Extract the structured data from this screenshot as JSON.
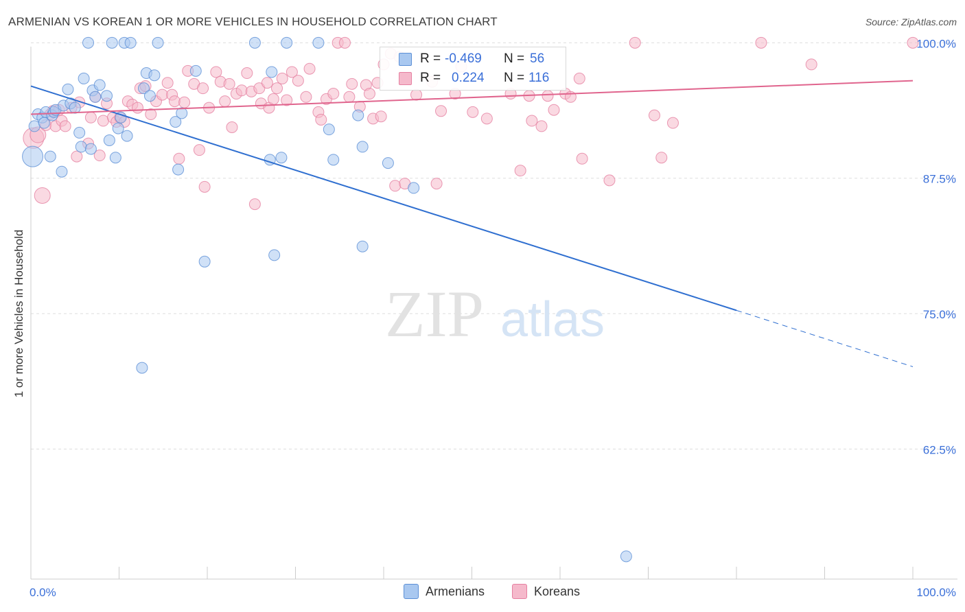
{
  "title": "ARMENIAN VS KOREAN 1 OR MORE VEHICLES IN HOUSEHOLD CORRELATION CHART",
  "source": "Source: ZipAtlas.com",
  "watermark": {
    "zip": "ZIP",
    "atlas": "atlas"
  },
  "stats": {
    "armenians": {
      "r_label": "R =",
      "r_value": "-0.469",
      "n_label": "N =",
      "n_value": "56"
    },
    "koreans": {
      "r_label": "R =",
      "r_value": "0.224",
      "n_label": "N =",
      "n_value": "116"
    }
  },
  "legend": {
    "armenians": "Armenians",
    "koreans": "Koreans"
  },
  "colors": {
    "armenians_fill": "#a9c8f0",
    "armenians_stroke": "#5b8fd6",
    "armenians_line": "#2f6fd0",
    "koreans_fill": "#f5b9cb",
    "koreans_stroke": "#e57fa0",
    "koreans_line": "#e0648d",
    "tick_label": "#3a6fd8",
    "grid": "#dddddd"
  },
  "chart_data": {
    "type": "scatter",
    "title": "ARMENIAN VS KOREAN 1 OR MORE VEHICLES IN HOUSEHOLD CORRELATION CHART",
    "xlabel": "",
    "ylabel": "1 or more Vehicles in Household",
    "xlim": [
      0,
      100
    ],
    "ylim": [
      50.5,
      100.4
    ],
    "x_tick_labels": [
      "0.0%",
      "100.0%"
    ],
    "y_ticks": [
      62.5,
      75.0,
      87.5,
      100.0
    ],
    "y_tick_labels": [
      "62.5%",
      "75.0%",
      "87.5%",
      "100.0%"
    ],
    "grid": true,
    "legend_position": "bottom-center",
    "series": [
      {
        "name": "Armenians",
        "r": -0.469,
        "n": 56,
        "trend": {
          "x": [
            0,
            80
          ],
          "y": [
            96.0,
            75.3
          ],
          "dashed_to": [
            100,
            70.1
          ]
        },
        "points": [
          [
            0.2,
            89.5,
            3
          ],
          [
            0.4,
            92.3,
            1
          ],
          [
            0.8,
            93.4,
            1
          ],
          [
            1.3,
            93.1,
            1
          ],
          [
            1.5,
            92.6,
            1
          ],
          [
            1.7,
            93.6,
            1
          ],
          [
            2.2,
            89.5,
            1
          ],
          [
            2.4,
            93.3,
            1
          ],
          [
            2.6,
            93.6,
            1
          ],
          [
            2.8,
            93.8,
            1
          ],
          [
            3.5,
            88.1,
            1
          ],
          [
            3.7,
            94.2,
            1
          ],
          [
            4.2,
            95.7,
            1
          ],
          [
            4.5,
            94.4,
            1
          ],
          [
            5.0,
            94.0,
            1
          ],
          [
            5.5,
            91.7,
            1
          ],
          [
            5.7,
            90.4,
            1
          ],
          [
            6.0,
            96.7,
            1
          ],
          [
            6.5,
            100.0,
            1
          ],
          [
            6.8,
            90.2,
            1
          ],
          [
            7.0,
            95.6,
            1
          ],
          [
            7.3,
            95.0,
            1
          ],
          [
            7.8,
            96.1,
            1
          ],
          [
            8.6,
            95.1,
            1
          ],
          [
            8.9,
            91.0,
            1
          ],
          [
            9.2,
            100.0,
            1
          ],
          [
            9.6,
            89.4,
            1
          ],
          [
            9.9,
            92.1,
            1
          ],
          [
            10.2,
            93.1,
            1
          ],
          [
            10.6,
            100.0,
            1
          ],
          [
            10.9,
            91.4,
            1
          ],
          [
            11.3,
            100.0,
            1
          ],
          [
            12.6,
            70.0,
            1
          ],
          [
            12.8,
            95.8,
            1
          ],
          [
            13.1,
            97.2,
            1
          ],
          [
            13.5,
            95.1,
            1
          ],
          [
            14.0,
            97.0,
            1
          ],
          [
            14.4,
            100.0,
            1
          ],
          [
            16.4,
            92.7,
            1
          ],
          [
            16.7,
            88.3,
            1
          ],
          [
            17.1,
            93.5,
            1
          ],
          [
            18.7,
            97.4,
            1
          ],
          [
            19.7,
            79.8,
            1
          ],
          [
            25.4,
            100.0,
            1
          ],
          [
            27.1,
            89.2,
            1
          ],
          [
            27.3,
            97.3,
            1
          ],
          [
            27.6,
            80.4,
            1
          ],
          [
            28.4,
            89.4,
            1
          ],
          [
            29.0,
            100.0,
            1
          ],
          [
            32.6,
            100.0,
            1
          ],
          [
            33.8,
            92.0,
            1
          ],
          [
            34.3,
            89.2,
            1
          ],
          [
            37.1,
            93.3,
            1
          ],
          [
            37.6,
            90.4,
            1
          ],
          [
            37.6,
            81.2,
            1
          ],
          [
            40.5,
            88.9,
            1
          ],
          [
            43.4,
            86.6,
            1
          ],
          [
            67.5,
            52.6,
            1
          ]
        ]
      },
      {
        "name": "Koreans",
        "r": 0.224,
        "n": 116,
        "trend": {
          "x": [
            0,
            100
          ],
          "y": [
            93.4,
            96.5
          ]
        },
        "points": [
          [
            0.3,
            91.2,
            3
          ],
          [
            0.8,
            91.5,
            2
          ],
          [
            1.3,
            85.9,
            2
          ],
          [
            1.7,
            92.4,
            1
          ],
          [
            2.2,
            93.4,
            1
          ],
          [
            2.5,
            93.7,
            1
          ],
          [
            2.8,
            92.3,
            1
          ],
          [
            3.2,
            93.8,
            1
          ],
          [
            3.5,
            92.8,
            1
          ],
          [
            3.9,
            92.3,
            1
          ],
          [
            4.6,
            94.0,
            1
          ],
          [
            5.2,
            89.5,
            1
          ],
          [
            5.5,
            94.5,
            1
          ],
          [
            6.5,
            90.7,
            1
          ],
          [
            6.8,
            93.1,
            1
          ],
          [
            7.3,
            95.0,
            1
          ],
          [
            7.8,
            89.6,
            1
          ],
          [
            8.2,
            92.8,
            1
          ],
          [
            8.6,
            94.4,
            1
          ],
          [
            9.3,
            93.1,
            1
          ],
          [
            9.7,
            92.7,
            1
          ],
          [
            10.1,
            93.1,
            1
          ],
          [
            10.6,
            92.7,
            1
          ],
          [
            11.0,
            94.6,
            1
          ],
          [
            11.5,
            94.3,
            1
          ],
          [
            12.1,
            94.0,
            1
          ],
          [
            12.4,
            95.8,
            1
          ],
          [
            13.0,
            96.0,
            1
          ],
          [
            13.6,
            93.4,
            1
          ],
          [
            14.2,
            94.6,
            1
          ],
          [
            14.9,
            95.2,
            1
          ],
          [
            15.5,
            96.3,
            1
          ],
          [
            16.0,
            95.2,
            1
          ],
          [
            16.3,
            94.6,
            1
          ],
          [
            16.8,
            89.3,
            1
          ],
          [
            17.4,
            94.5,
            1
          ],
          [
            17.8,
            97.4,
            1
          ],
          [
            18.5,
            96.2,
            1
          ],
          [
            19.1,
            90.1,
            1
          ],
          [
            19.5,
            95.8,
            1
          ],
          [
            19.7,
            86.7,
            1
          ],
          [
            20.2,
            94.0,
            1
          ],
          [
            21.0,
            97.3,
            1
          ],
          [
            21.5,
            96.4,
            1
          ],
          [
            22.0,
            94.6,
            1
          ],
          [
            22.5,
            96.2,
            1
          ],
          [
            22.8,
            92.2,
            1
          ],
          [
            23.3,
            95.3,
            1
          ],
          [
            23.9,
            95.6,
            1
          ],
          [
            24.5,
            97.2,
            1
          ],
          [
            25.0,
            95.5,
            1
          ],
          [
            25.4,
            85.1,
            1
          ],
          [
            25.9,
            95.8,
            1
          ],
          [
            26.1,
            94.4,
            1
          ],
          [
            26.8,
            96.3,
            1
          ],
          [
            27.0,
            94.0,
            1
          ],
          [
            27.5,
            94.8,
            1
          ],
          [
            27.9,
            95.8,
            1
          ],
          [
            28.5,
            96.7,
            1
          ],
          [
            29.0,
            94.7,
            1
          ],
          [
            29.6,
            97.3,
            1
          ],
          [
            30.3,
            96.5,
            1
          ],
          [
            31.2,
            95.0,
            1
          ],
          [
            31.6,
            97.6,
            1
          ],
          [
            32.6,
            93.6,
            1
          ],
          [
            32.9,
            92.9,
            1
          ],
          [
            33.5,
            94.8,
            1
          ],
          [
            34.3,
            95.3,
            1
          ],
          [
            34.8,
            100.0,
            1
          ],
          [
            35.6,
            100.0,
            1
          ],
          [
            36.1,
            95.0,
            1
          ],
          [
            36.4,
            96.2,
            1
          ],
          [
            37.3,
            94.1,
            1
          ],
          [
            38.0,
            96.1,
            1
          ],
          [
            38.4,
            95.3,
            1
          ],
          [
            38.8,
            93.0,
            1
          ],
          [
            39.3,
            96.3,
            1
          ],
          [
            39.7,
            93.2,
            1
          ],
          [
            40.0,
            98.0,
            1
          ],
          [
            40.8,
            99.0,
            1
          ],
          [
            41.3,
            86.8,
            1
          ],
          [
            41.8,
            98.7,
            1
          ],
          [
            42.4,
            87.0,
            1
          ],
          [
            43.7,
            95.2,
            1
          ],
          [
            45.5,
            96.4,
            1
          ],
          [
            46.0,
            87.0,
            1
          ],
          [
            46.5,
            93.7,
            1
          ],
          [
            48.1,
            95.3,
            1
          ],
          [
            48.8,
            97.8,
            1
          ],
          [
            50.1,
            93.6,
            1
          ],
          [
            51.7,
            93.0,
            1
          ],
          [
            54.4,
            95.3,
            1
          ],
          [
            55.5,
            88.2,
            1
          ],
          [
            56.5,
            95.1,
            1
          ],
          [
            56.8,
            92.8,
            1
          ],
          [
            57.9,
            92.3,
            1
          ],
          [
            58.6,
            95.1,
            1
          ],
          [
            59.3,
            93.8,
            1
          ],
          [
            60.6,
            95.3,
            1
          ],
          [
            61.2,
            95.0,
            1
          ],
          [
            62.2,
            96.7,
            1
          ],
          [
            62.5,
            89.3,
            1
          ],
          [
            65.6,
            87.3,
            1
          ],
          [
            68.5,
            100.0,
            1
          ],
          [
            70.7,
            93.3,
            1
          ],
          [
            71.5,
            89.4,
            1
          ],
          [
            72.8,
            92.6,
            1
          ],
          [
            82.8,
            100.0,
            1
          ],
          [
            88.5,
            98.0,
            1
          ],
          [
            100.0,
            100.0,
            1
          ]
        ]
      }
    ]
  }
}
